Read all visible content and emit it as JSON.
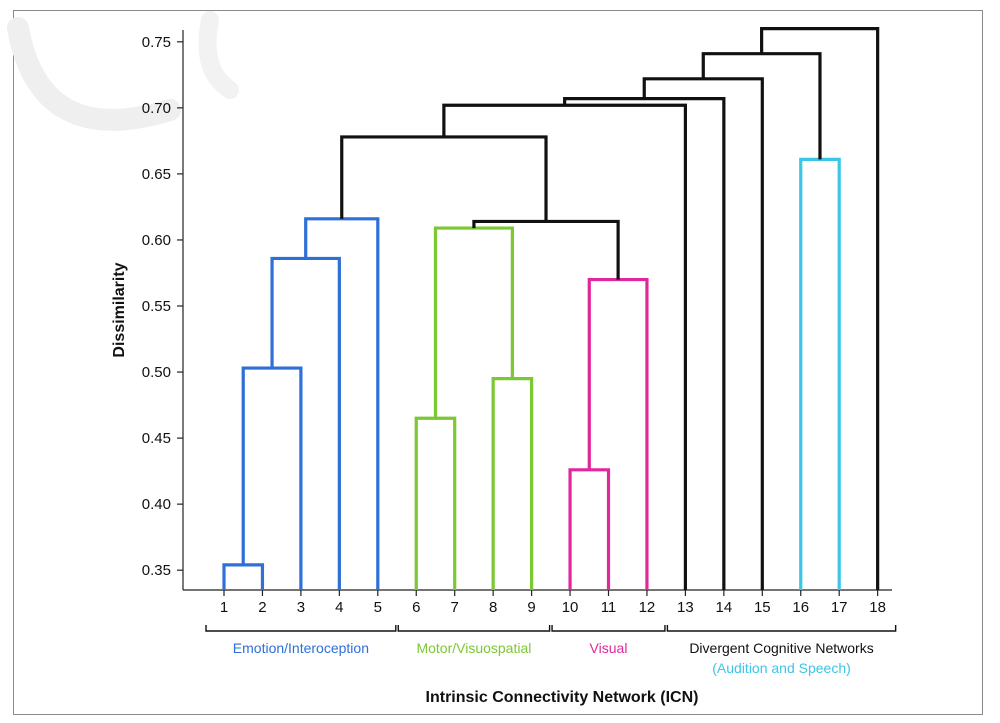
{
  "chart_data": {
    "type": "dendrogram",
    "ylabel": "Dissimilarity",
    "xlabel": "Intrinsic Connectivity Network (ICN)",
    "ylim": [
      0.335,
      0.765
    ],
    "y_ticks": [
      0.35,
      0.4,
      0.45,
      0.5,
      0.55,
      0.6,
      0.65,
      0.7,
      0.75
    ],
    "y_tick_labels": [
      "0.35",
      "0.40",
      "0.45",
      "0.50",
      "0.55",
      "0.60",
      "0.65",
      "0.70",
      "0.75"
    ],
    "leaves": [
      "1",
      "2",
      "3",
      "4",
      "5",
      "6",
      "7",
      "8",
      "9",
      "10",
      "11",
      "12",
      "13",
      "14",
      "15",
      "16",
      "17",
      "18"
    ],
    "colors": {
      "emotion": "#2e6fd8",
      "motor": "#7cc832",
      "visual": "#e0289c",
      "audition": "#3cc6e6",
      "divergent": "#111111"
    },
    "merges": [
      {
        "id": "m1",
        "left": "L1",
        "right": "L2",
        "height": 0.354,
        "color": "emotion"
      },
      {
        "id": "m2",
        "left": "m1",
        "right": "L3",
        "height": 0.503,
        "color": "emotion"
      },
      {
        "id": "m3",
        "left": "m2",
        "right": "L4",
        "height": 0.586,
        "color": "emotion"
      },
      {
        "id": "m4",
        "left": "m3",
        "right": "L5",
        "height": 0.616,
        "color": "emotion"
      },
      {
        "id": "m5",
        "left": "L6",
        "right": "L7",
        "height": 0.465,
        "color": "motor"
      },
      {
        "id": "m6",
        "left": "L8",
        "right": "L9",
        "height": 0.495,
        "color": "motor"
      },
      {
        "id": "m7",
        "left": "m5",
        "right": "m6",
        "height": 0.609,
        "color": "motor"
      },
      {
        "id": "m8",
        "left": "L10",
        "right": "L11",
        "height": 0.426,
        "color": "visual"
      },
      {
        "id": "m9",
        "left": "m8",
        "right": "L12",
        "height": 0.57,
        "color": "visual"
      },
      {
        "id": "m10",
        "left": "m7",
        "right": "m9",
        "height": 0.614,
        "color": "divergent"
      },
      {
        "id": "m11",
        "left": "m4",
        "right": "m10",
        "height": 0.678,
        "color": "divergent"
      },
      {
        "id": "m12",
        "left": "m11",
        "right": "L13",
        "height": 0.702,
        "color": "divergent"
      },
      {
        "id": "m13",
        "left": "m12",
        "right": "L14",
        "height": 0.707,
        "color": "divergent"
      },
      {
        "id": "m14",
        "left": "m13",
        "right": "L15",
        "height": 0.722,
        "color": "divergent"
      },
      {
        "id": "m15",
        "left": "L16",
        "right": "L17",
        "height": 0.661,
        "color": "audition"
      },
      {
        "id": "m16",
        "left": "m14",
        "right": "m15",
        "height": 0.741,
        "color": "divergent"
      },
      {
        "id": "m17",
        "left": "m16",
        "right": "L18",
        "height": 0.76,
        "color": "divergent"
      }
    ],
    "groups": [
      {
        "label": "Emotion/Interoception",
        "first_leaf": 1,
        "last_leaf": 5,
        "color": "emotion"
      },
      {
        "label": "Motor/Visuospatial",
        "first_leaf": 6,
        "last_leaf": 9,
        "color": "motor"
      },
      {
        "label": "Visual",
        "first_leaf": 10,
        "last_leaf": 12,
        "color": "visual"
      },
      {
        "label": "Divergent Cognitive Networks",
        "sublabel": "(Audition and Speech)",
        "first_leaf": 13,
        "last_leaf": 18,
        "color": "divergent",
        "sublabel_color": "audition"
      }
    ]
  }
}
